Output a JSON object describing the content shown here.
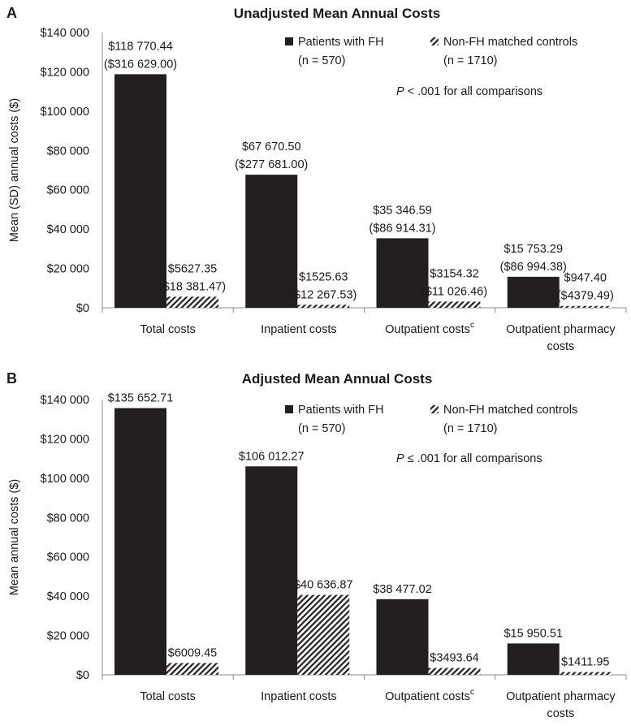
{
  "chart_data": [
    {
      "type": "bar",
      "panel": "A",
      "title": "Unadjusted Mean Annual Costs",
      "ylabel": "Mean (SD) annual costs ($)",
      "ylim": [
        0,
        140000
      ],
      "yticks": [
        0,
        20000,
        40000,
        60000,
        80000,
        100000,
        120000,
        140000
      ],
      "ytick_labels": [
        "$0",
        "$20 000",
        "$40 000",
        "$60 000",
        "$80 000",
        "$100 000",
        "$120 000",
        "$140 000"
      ],
      "categories": [
        {
          "line1": "Total costs",
          "line2": "",
          "sup": ""
        },
        {
          "line1": "Inpatient costs",
          "line2": "",
          "sup": ""
        },
        {
          "line1": "Outpatient costs",
          "line2": "",
          "sup": "c"
        },
        {
          "line1": "Outpatient pharmacy",
          "line2": "costs",
          "sup": ""
        }
      ],
      "series": [
        {
          "name": "Patients with FH",
          "n": "(n = 570)",
          "values": [
            118770.44,
            67670.5,
            35346.59,
            15753.29
          ],
          "labels": [
            [
              "$118 770.44",
              "($316 629.00)"
            ],
            [
              "$67 670.50",
              "($277 681.00)"
            ],
            [
              "$35 346.59",
              "($86 914.31)"
            ],
            [
              "$15 753.29",
              "($86 994.38)"
            ]
          ]
        },
        {
          "name": "Non-FH matched controls",
          "n": "(n = 1710)",
          "values": [
            5627.35,
            1525.63,
            3154.32,
            947.4
          ],
          "labels": [
            [
              "$5627.35",
              "($18 381.47)"
            ],
            [
              "$1525.63",
              "($12 267.53)"
            ],
            [
              "$3154.32",
              "($11 026.46)"
            ],
            [
              "$947.40",
              "($4379.49)"
            ]
          ]
        }
      ],
      "note_p": "P",
      "note_text": " < .001 for all comparisons",
      "legend_position": "top-right",
      "grid": false
    },
    {
      "type": "bar",
      "panel": "B",
      "title": "Adjusted Mean Annual Costs",
      "ylabel": "Mean annual costs ($)",
      "ylim": [
        0,
        140000
      ],
      "yticks": [
        0,
        20000,
        40000,
        60000,
        80000,
        100000,
        120000,
        140000
      ],
      "ytick_labels": [
        "$0",
        "$20 000",
        "$40 000",
        "$60 000",
        "$80 000",
        "$100 000",
        "$120 000",
        "$140 000"
      ],
      "categories": [
        {
          "line1": "Total costs",
          "line2": "",
          "sup": ""
        },
        {
          "line1": "Inpatient costs",
          "line2": "",
          "sup": ""
        },
        {
          "line1": "Outpatient costs",
          "line2": "",
          "sup": "c"
        },
        {
          "line1": "Outpatient pharmacy",
          "line2": "costs",
          "sup": ""
        }
      ],
      "series": [
        {
          "name": "Patients with FH",
          "n": "(n = 570)",
          "values": [
            135652.71,
            106012.27,
            38477.02,
            15950.51
          ],
          "labels": [
            [
              "$135 652.71"
            ],
            [
              "$106 012.27"
            ],
            [
              "$38 477.02"
            ],
            [
              "$15 950.51"
            ]
          ]
        },
        {
          "name": "Non-FH matched controls",
          "n": "(n = 1710)",
          "values": [
            6009.45,
            40636.87,
            3493.64,
            1411.95
          ],
          "labels": [
            [
              "$6009.45"
            ],
            [
              "$40 636.87"
            ],
            [
              "$3493.64"
            ],
            [
              "$1411.95"
            ]
          ]
        }
      ],
      "note_p": "P",
      "note_text": " ≤ .001 for all comparisons",
      "legend_position": "top-right",
      "grid": false
    }
  ],
  "colors": {
    "fh": "#231f20",
    "control_hatch": "#231f20",
    "axis": "#8c8c8c",
    "text": "#1a1a1a"
  }
}
